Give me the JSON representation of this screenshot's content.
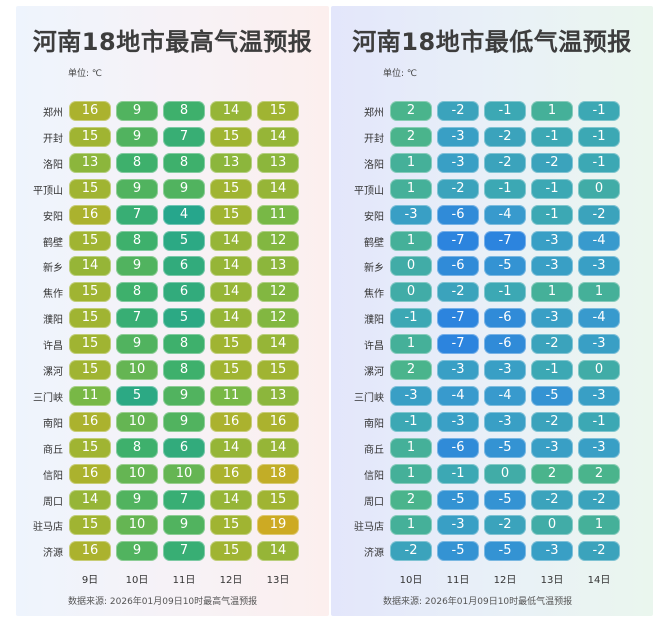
{
  "unit_label": "单位: ℃",
  "chart_data": [
    {
      "type": "heatmap",
      "title": "河南18地市最高气温预报",
      "source": "数据来源: 2026年01月09日10时最高气温预报",
      "columns": [
        "9日",
        "10日",
        "11日",
        "12日",
        "13日"
      ],
      "rows": [
        "郑州",
        "开封",
        "洛阳",
        "平顶山",
        "安阳",
        "鹤壁",
        "新乡",
        "焦作",
        "濮阳",
        "许昌",
        "漯河",
        "三门峡",
        "南阳",
        "商丘",
        "信阳",
        "周口",
        "驻马店",
        "济源"
      ],
      "values": [
        [
          16,
          9,
          8,
          14,
          15
        ],
        [
          15,
          9,
          7,
          15,
          14
        ],
        [
          13,
          8,
          8,
          13,
          13
        ],
        [
          15,
          9,
          9,
          15,
          14
        ],
        [
          16,
          7,
          4,
          15,
          11
        ],
        [
          15,
          8,
          5,
          14,
          12
        ],
        [
          14,
          9,
          6,
          14,
          13
        ],
        [
          15,
          8,
          6,
          14,
          12
        ],
        [
          15,
          7,
          5,
          14,
          12
        ],
        [
          15,
          9,
          8,
          15,
          14
        ],
        [
          15,
          10,
          8,
          15,
          15
        ],
        [
          11,
          5,
          9,
          11,
          13
        ],
        [
          16,
          10,
          9,
          16,
          16
        ],
        [
          15,
          8,
          6,
          14,
          14
        ],
        [
          16,
          10,
          10,
          16,
          18
        ],
        [
          14,
          9,
          7,
          14,
          15
        ],
        [
          15,
          10,
          9,
          15,
          19
        ],
        [
          16,
          9,
          7,
          15,
          14
        ]
      ]
    },
    {
      "type": "heatmap",
      "title": "河南18地市最低气温预报",
      "source": "数据来源: 2026年01月09日10时最低气温预报",
      "columns": [
        "10日",
        "11日",
        "12日",
        "13日",
        "14日"
      ],
      "rows": [
        "郑州",
        "开封",
        "洛阳",
        "平顶山",
        "安阳",
        "鹤壁",
        "新乡",
        "焦作",
        "濮阳",
        "许昌",
        "漯河",
        "三门峡",
        "南阳",
        "商丘",
        "信阳",
        "周口",
        "驻马店",
        "济源"
      ],
      "values": [
        [
          2,
          -2,
          -1,
          1,
          -1
        ],
        [
          2,
          -3,
          -2,
          -1,
          -1
        ],
        [
          1,
          -3,
          -2,
          -2,
          -1
        ],
        [
          1,
          -2,
          -1,
          -1,
          0
        ],
        [
          -3,
          -6,
          -4,
          -1,
          -2
        ],
        [
          1,
          -7,
          -7,
          -3,
          -4
        ],
        [
          0,
          -6,
          -5,
          -3,
          -3
        ],
        [
          0,
          -2,
          -1,
          1,
          1
        ],
        [
          -1,
          -7,
          -6,
          -3,
          -4
        ],
        [
          1,
          -7,
          -6,
          -2,
          -3
        ],
        [
          2,
          -3,
          -3,
          -1,
          0
        ],
        [
          -3,
          -4,
          -4,
          -5,
          -3
        ],
        [
          -1,
          -3,
          -3,
          -2,
          -1
        ],
        [
          1,
          -6,
          -5,
          -3,
          -3
        ],
        [
          1,
          -1,
          0,
          2,
          2
        ],
        [
          2,
          -5,
          -5,
          -2,
          -2
        ],
        [
          1,
          -3,
          -2,
          0,
          1
        ],
        [
          -2,
          -5,
          -5,
          -3,
          -2
        ]
      ]
    }
  ]
}
